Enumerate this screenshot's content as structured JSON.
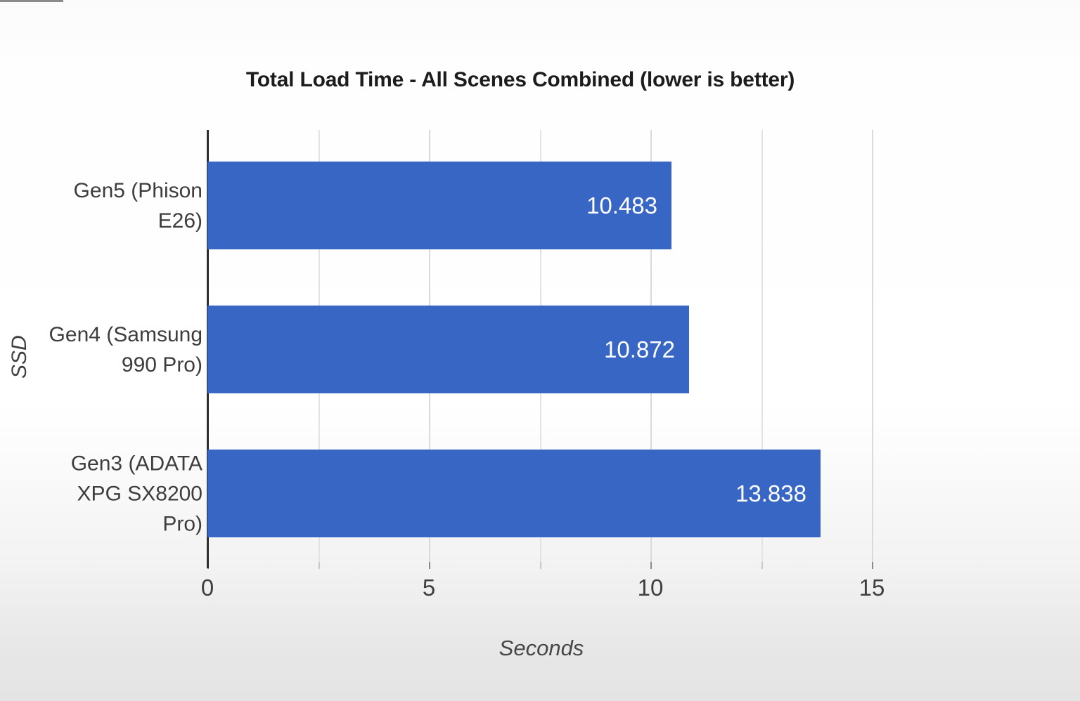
{
  "chart_data": {
    "type": "bar",
    "orientation": "horizontal",
    "title": "Total Load Time - All Scenes Combined (lower is better)",
    "xlabel": "Seconds",
    "ylabel": "SSD",
    "categories": [
      "Gen5 (Phison E26)",
      "Gen4 (Samsung 990 Pro)",
      "Gen3 (ADATA XPG SX8200 Pro)"
    ],
    "categories_display": [
      "Gen5 (Phison\nE26)",
      "Gen4 (Samsung\n990 Pro)",
      "Gen3 (ADATA\nXPG SX8200\nPro)"
    ],
    "values": [
      10.483,
      10.872,
      13.838
    ],
    "value_labels": [
      "10.483",
      "10.872",
      "13.838"
    ],
    "xlim": [
      0,
      17.8
    ],
    "xticks": [
      0,
      5,
      10,
      15
    ],
    "xticks_minor": [
      2.5,
      7.5,
      12.5
    ],
    "grid": true,
    "legend": "none",
    "bar_color": "#3766c4",
    "value_label_color": "#ffffff",
    "note_lower_is_better": "lower is better"
  }
}
